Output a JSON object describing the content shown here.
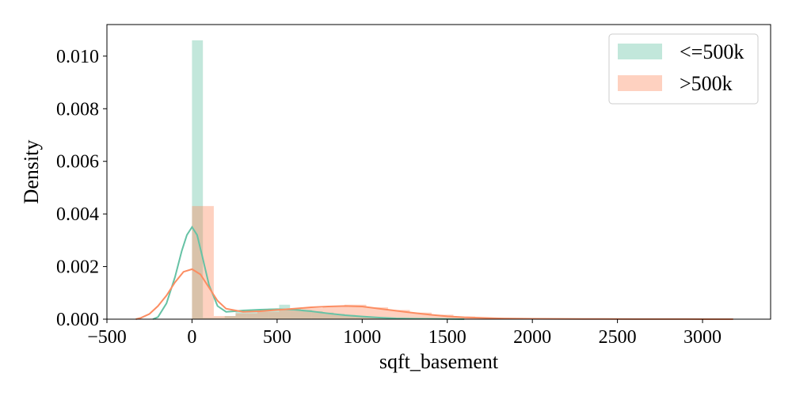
{
  "chart_data": {
    "type": "histogram_kde",
    "title": "",
    "xlabel": "sqft_basement",
    "ylabel": "Density",
    "xlim": [
      -500,
      3400
    ],
    "ylim": [
      0,
      0.0112
    ],
    "x_ticks": [
      -500,
      0,
      500,
      1000,
      1500,
      2000,
      2500,
      3000
    ],
    "x_tick_labels": [
      "−500",
      "0",
      "500",
      "1000",
      "1500",
      "2000",
      "2500",
      "3000"
    ],
    "y_ticks": [
      0,
      0.002,
      0.004,
      0.006,
      0.008,
      0.01
    ],
    "y_tick_labels": [
      "0.000",
      "0.002",
      "0.004",
      "0.006",
      "0.008",
      "0.010"
    ],
    "grid": false,
    "legend_position": "top-right",
    "series": [
      {
        "name": "<=500k",
        "color": "#66c2a5",
        "bin_width": 64,
        "bins": [
          {
            "x0": 0,
            "value": 0.0106
          },
          {
            "x0": 64,
            "value": 5e-05
          },
          {
            "x0": 128,
            "value": 5e-05
          },
          {
            "x0": 192,
            "value": 0.00012
          },
          {
            "x0": 256,
            "value": 0.0003
          },
          {
            "x0": 320,
            "value": 0.00035
          },
          {
            "x0": 384,
            "value": 0.00035
          },
          {
            "x0": 448,
            "value": 0.0004
          },
          {
            "x0": 512,
            "value": 0.00055
          },
          {
            "x0": 576,
            "value": 0.0004
          },
          {
            "x0": 640,
            "value": 0.00035
          },
          {
            "x0": 704,
            "value": 0.0003
          },
          {
            "x0": 768,
            "value": 0.00025
          },
          {
            "x0": 832,
            "value": 0.0002
          },
          {
            "x0": 896,
            "value": 0.00016
          },
          {
            "x0": 960,
            "value": 0.00012
          },
          {
            "x0": 1024,
            "value": 8e-05
          },
          {
            "x0": 1088,
            "value": 6e-05
          },
          {
            "x0": 1152,
            "value": 4e-05
          },
          {
            "x0": 1216,
            "value": 3e-05
          },
          {
            "x0": 1280,
            "value": 2e-05
          },
          {
            "x0": 1344,
            "value": 1e-05
          }
        ],
        "kde": [
          [
            -230,
            0.0
          ],
          [
            -200,
            8e-05
          ],
          [
            -150,
            0.0006
          ],
          [
            -100,
            0.0016
          ],
          [
            -60,
            0.0026
          ],
          [
            -30,
            0.0032
          ],
          [
            0,
            0.0035
          ],
          [
            30,
            0.0032
          ],
          [
            60,
            0.0024
          ],
          [
            100,
            0.0013
          ],
          [
            150,
            0.0005
          ],
          [
            200,
            0.00028
          ],
          [
            250,
            0.0003
          ],
          [
            300,
            0.00033
          ],
          [
            400,
            0.00036
          ],
          [
            500,
            0.00038
          ],
          [
            600,
            0.00036
          ],
          [
            700,
            0.0003
          ],
          [
            800,
            0.00022
          ],
          [
            900,
            0.00015
          ],
          [
            1000,
            0.0001
          ],
          [
            1100,
            6e-05
          ],
          [
            1200,
            3e-05
          ],
          [
            1300,
            2e-05
          ],
          [
            1450,
            1e-05
          ],
          [
            1600,
            0.0
          ]
        ]
      },
      {
        "name": ">500k",
        "color": "#fc8d62",
        "bin_width": 128,
        "bins": [
          {
            "x0": 0,
            "value": 0.0043
          },
          {
            "x0": 128,
            "value": 0.00012
          },
          {
            "x0": 256,
            "value": 0.00022
          },
          {
            "x0": 384,
            "value": 0.00028
          },
          {
            "x0": 512,
            "value": 0.00038
          },
          {
            "x0": 640,
            "value": 0.00042
          },
          {
            "x0": 768,
            "value": 0.00048
          },
          {
            "x0": 896,
            "value": 0.00055
          },
          {
            "x0": 1024,
            "value": 0.00045
          },
          {
            "x0": 1152,
            "value": 0.00035
          },
          {
            "x0": 1280,
            "value": 0.00025
          },
          {
            "x0": 1408,
            "value": 0.00017
          },
          {
            "x0": 1536,
            "value": 0.0001
          },
          {
            "x0": 1664,
            "value": 6e-05
          },
          {
            "x0": 1792,
            "value": 4e-05
          },
          {
            "x0": 1920,
            "value": 3e-05
          },
          {
            "x0": 2048,
            "value": 2e-05
          },
          {
            "x0": 2176,
            "value": 1.5e-05
          },
          {
            "x0": 2304,
            "value": 1e-05
          },
          {
            "x0": 2432,
            "value": 1e-05
          },
          {
            "x0": 2560,
            "value": 8e-06
          },
          {
            "x0": 2688,
            "value": 5e-06
          },
          {
            "x0": 2816,
            "value": 5e-06
          },
          {
            "x0": 2944,
            "value": 4e-06
          }
        ],
        "kde": [
          [
            -330,
            0.0
          ],
          [
            -300,
            5e-05
          ],
          [
            -250,
            0.0002
          ],
          [
            -200,
            0.0005
          ],
          [
            -150,
            0.0009
          ],
          [
            -100,
            0.0014
          ],
          [
            -50,
            0.0018
          ],
          [
            0,
            0.0019
          ],
          [
            50,
            0.0017
          ],
          [
            100,
            0.0012
          ],
          [
            150,
            0.0007
          ],
          [
            200,
            0.0004
          ],
          [
            300,
            0.00028
          ],
          [
            400,
            0.0003
          ],
          [
            500,
            0.00035
          ],
          [
            600,
            0.0004
          ],
          [
            700,
            0.00045
          ],
          [
            800,
            0.00048
          ],
          [
            900,
            0.0005
          ],
          [
            1000,
            0.00048
          ],
          [
            1100,
            0.0004
          ],
          [
            1200,
            0.00032
          ],
          [
            1300,
            0.00024
          ],
          [
            1400,
            0.00017
          ],
          [
            1500,
            0.00011
          ],
          [
            1600,
            7e-05
          ],
          [
            1800,
            3e-05
          ],
          [
            2000,
            1.5e-05
          ],
          [
            2300,
            8e-06
          ],
          [
            2600,
            4e-06
          ],
          [
            2900,
            2e-06
          ],
          [
            3180,
            0.0
          ]
        ]
      }
    ]
  }
}
